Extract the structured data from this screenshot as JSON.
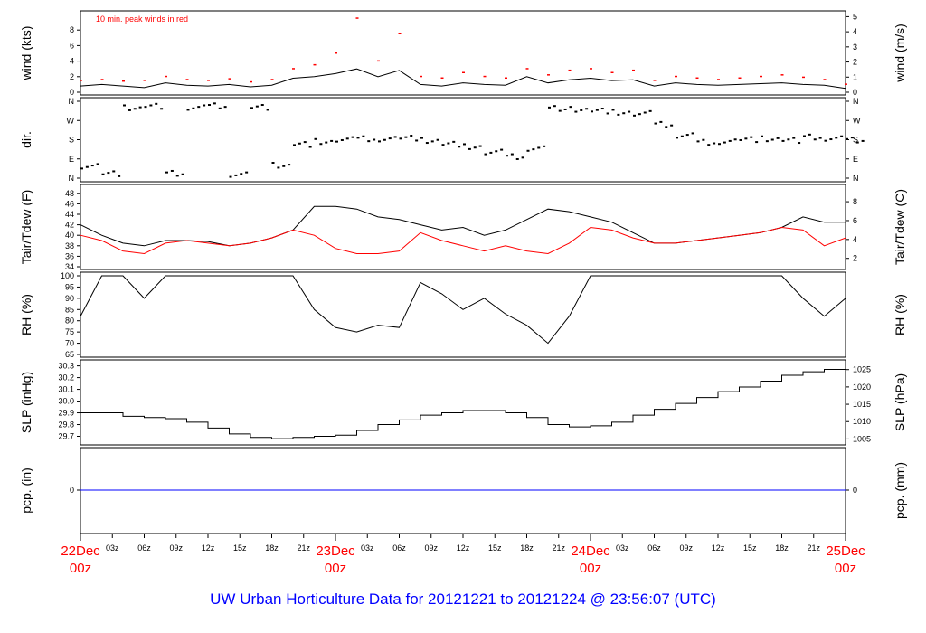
{
  "title": "UW Urban Horticulture Data for 20121221  to  20121224 @ 23:56:07  (UTC)",
  "annotation": "10 min. peak winds in red",
  "colors": {
    "main": "#000000",
    "peak": "#ff0000",
    "dew": "#ff0000",
    "pcp": "#0000ff",
    "title": "#0000ff",
    "day_label": "#ff0000"
  },
  "x_axis": {
    "day_labels": [
      {
        "hour": 0,
        "day": "22Dec",
        "time": "00z"
      },
      {
        "hour": 24,
        "day": "23Dec",
        "time": "00z"
      },
      {
        "hour": 48,
        "day": "24Dec",
        "time": "00z"
      },
      {
        "hour": 72,
        "day": "25Dec",
        "time": "00z"
      }
    ],
    "hour_labels": [
      "03z",
      "06z",
      "09z",
      "12z",
      "15z",
      "18z",
      "21z"
    ]
  },
  "chart_data": [
    {
      "type": "line",
      "ylabel": "wind (kts)",
      "ylabel_right": "wind (m/s)",
      "ylim": [
        0,
        10
      ],
      "yticks": [
        0,
        2,
        4,
        6,
        8
      ],
      "yticks_right": [
        0,
        1,
        2,
        3,
        4,
        5
      ],
      "x_hours_step": 2,
      "series": [
        {
          "name": "wind",
          "values": [
            0.8,
            1.0,
            0.8,
            0.6,
            1.2,
            0.9,
            0.8,
            1.0,
            0.7,
            0.9,
            1.8,
            2.0,
            2.4,
            3.0,
            2.0,
            2.8,
            1.0,
            0.8,
            1.2,
            1.0,
            0.9,
            2.0,
            1.2,
            1.6,
            1.8,
            1.5,
            1.6,
            0.8,
            1.2,
            1.0,
            0.9,
            1.0,
            1.1,
            1.2,
            1.0,
            0.9,
            0.5
          ]
        },
        {
          "name": "10 min. peak winds",
          "values": [
            1.5,
            1.6,
            1.4,
            1.5,
            2.0,
            1.6,
            1.5,
            1.7,
            1.3,
            1.6,
            3.0,
            3.5,
            5.0,
            9.5,
            4.0,
            7.5,
            2.0,
            1.8,
            2.5,
            2.0,
            1.8,
            3.0,
            2.2,
            2.8,
            3.0,
            2.5,
            2.8,
            1.5,
            2.0,
            1.8,
            1.6,
            1.8,
            2.0,
            2.2,
            1.9,
            1.6,
            1.0
          ]
        }
      ]
    },
    {
      "type": "scatter",
      "ylabel": "dir.",
      "ylim": [
        0,
        360
      ],
      "yticks": [
        {
          "v": 0,
          "l": "N"
        },
        {
          "v": 90,
          "l": "E"
        },
        {
          "v": 180,
          "l": "S"
        },
        {
          "v": 270,
          "l": "W"
        },
        {
          "v": 360,
          "l": "N"
        }
      ],
      "x_hours_step": 2,
      "series": [
        {
          "name": "direction",
          "values": [
            60,
            20,
            330,
            340,
            20,
            330,
            340,
            20,
            330,
            60,
            160,
            175,
            180,
            185,
            185,
            185,
            175,
            160,
            150,
            120,
            100,
            140,
            330,
            320,
            315,
            310,
            300,
            250,
            200,
            170,
            175,
            180,
            185,
            180,
            190,
            185,
            180
          ]
        }
      ]
    },
    {
      "type": "line",
      "ylabel": "Tair/Tdew (F)",
      "ylabel_right": "Tair/Tdew (C)",
      "ylim": [
        34,
        49
      ],
      "yticks": [
        34,
        36,
        38,
        40,
        42,
        44,
        46,
        48
      ],
      "yticks_right": [
        2,
        4,
        6,
        8
      ],
      "x_hours_step": 2,
      "series": [
        {
          "name": "Tair",
          "values": [
            42,
            40,
            38.5,
            38,
            39,
            39,
            38.8,
            38,
            38.5,
            39.5,
            41,
            45.5,
            45.5,
            45,
            43.5,
            43,
            42,
            41,
            41.5,
            40,
            41,
            43,
            45,
            44.5,
            43.5,
            42.5,
            40.5,
            38.5,
            38.5,
            39,
            39.5,
            40,
            40.5,
            41.5,
            43.5,
            42.5,
            42.5
          ]
        },
        {
          "name": "Tdew",
          "values": [
            40,
            39,
            37,
            36.5,
            38.5,
            39,
            38.5,
            38,
            38.5,
            39.5,
            41,
            40,
            37.5,
            36.5,
            36.5,
            37,
            40.5,
            39,
            38,
            37,
            38,
            37,
            36.5,
            38.5,
            41.5,
            41,
            39.5,
            38.5,
            38.5,
            39,
            39.5,
            40,
            40.5,
            41.5,
            41,
            38,
            39.5
          ]
        }
      ]
    },
    {
      "type": "line",
      "ylabel": "RH (%)",
      "ylabel_right": "RH (%)",
      "ylim": [
        65,
        100
      ],
      "yticks": [
        65,
        70,
        75,
        80,
        85,
        90,
        95,
        100
      ],
      "x_hours_step": 2,
      "series": [
        {
          "name": "RH",
          "values": [
            82,
            100,
            100,
            90,
            100,
            100,
            100,
            100,
            100,
            100,
            100,
            85,
            77,
            75,
            78,
            77,
            97,
            92,
            85,
            90,
            83,
            78,
            70,
            82,
            100,
            100,
            100,
            100,
            100,
            100,
            100,
            100,
            100,
            100,
            90,
            82,
            90
          ]
        }
      ]
    },
    {
      "type": "line",
      "ylabel": "SLP (inHg)",
      "ylabel_right": "SLP (hPa)",
      "ylim": [
        29.65,
        30.32
      ],
      "yticks": [
        29.7,
        29.8,
        29.9,
        30.0,
        30.1,
        30.2,
        30.3
      ],
      "yticks_right": [
        1005,
        1010,
        1015,
        1020,
        1025
      ],
      "x_hours_step": 2,
      "series": [
        {
          "name": "SLP",
          "values": [
            29.9,
            29.9,
            29.87,
            29.86,
            29.85,
            29.82,
            29.77,
            29.72,
            29.69,
            29.68,
            29.69,
            29.7,
            29.71,
            29.75,
            29.8,
            29.84,
            29.88,
            29.9,
            29.92,
            29.92,
            29.9,
            29.86,
            29.8,
            29.78,
            29.79,
            29.82,
            29.88,
            29.93,
            29.98,
            30.03,
            30.08,
            30.12,
            30.17,
            30.22,
            30.25,
            30.27,
            30.28
          ]
        }
      ]
    },
    {
      "type": "line",
      "ylabel": "pcp. (in)",
      "ylabel_right": "pcp. (mm)",
      "yticks": [
        0
      ],
      "yticks_right": [
        0
      ],
      "series": [
        {
          "name": "pcp",
          "values": [
            0,
            0
          ]
        }
      ]
    }
  ]
}
